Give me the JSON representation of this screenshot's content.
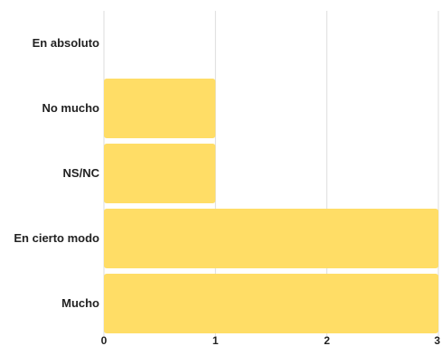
{
  "chart_data": {
    "type": "bar",
    "orientation": "horizontal",
    "categories": [
      "En absoluto",
      "No mucho",
      "NS/NC",
      "En cierto modo",
      "Mucho"
    ],
    "values": [
      0,
      1,
      1,
      3,
      3
    ],
    "xlim": [
      0,
      3
    ],
    "xticks": [
      0,
      1,
      2,
      3
    ],
    "grid": true,
    "bar_color": "#FFDD66",
    "grid_color": "#dddddd"
  }
}
